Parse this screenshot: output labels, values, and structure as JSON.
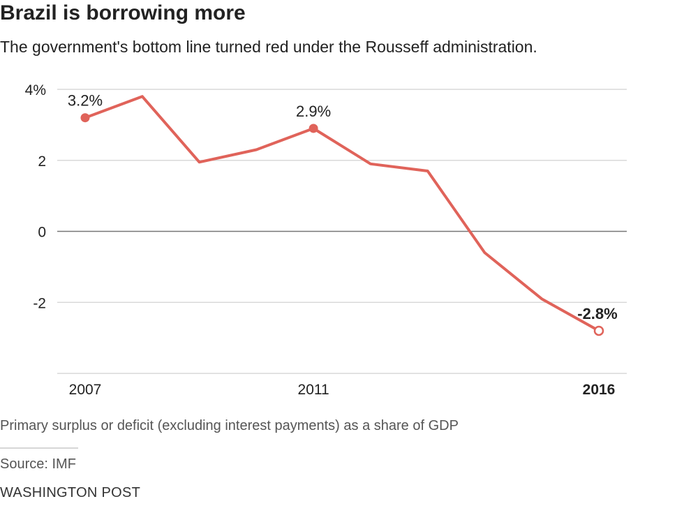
{
  "title": "Brazil is borrowing more",
  "subtitle": "The government's bottom line turned red under the Rousseff administration.",
  "note": "Primary surplus or deficit (excluding interest payments) as a share of GDP",
  "source": "Source: IMF",
  "credit": "WASHINGTON POST",
  "colors": {
    "line": "#e0635a",
    "grid": "#d9d9d9",
    "zero_line": "#777777",
    "text": "#222222"
  },
  "chart_data": {
    "type": "line",
    "title": "Brazil is borrowing more",
    "subtitle": "The government's bottom line turned red under the Rousseff administration.",
    "xlabel": "",
    "ylabel": "",
    "x": [
      2007,
      2008,
      2009,
      2010,
      2011,
      2012,
      2013,
      2014,
      2015,
      2016
    ],
    "series": [
      {
        "values": [
          3.2,
          3.8,
          1.95,
          2.3,
          2.9,
          1.9,
          1.7,
          -0.6,
          -1.9,
          -2.8
        ]
      }
    ],
    "ylim": [
      -4,
      4
    ],
    "xlim": [
      2007,
      2016
    ],
    "y_ticks": [
      4,
      2,
      0,
      -2
    ],
    "y_tick_labels": [
      "4%",
      "2",
      "0",
      "-2"
    ],
    "x_ticks": [
      2007,
      2011,
      2016
    ],
    "x_tick_labels": [
      "2007",
      "2011",
      "2016"
    ],
    "x_tick_bold": [
      false,
      false,
      true
    ],
    "grid": "horizontal",
    "annotations": [
      {
        "x": 2007,
        "y": 3.2,
        "text": "3.2%",
        "marker": "filled",
        "bold": false
      },
      {
        "x": 2011,
        "y": 2.9,
        "text": "2.9%",
        "marker": "filled",
        "bold": false
      },
      {
        "x": 2016,
        "y": -2.8,
        "text": "-2.8%",
        "marker": "open",
        "bold": true
      }
    ]
  }
}
